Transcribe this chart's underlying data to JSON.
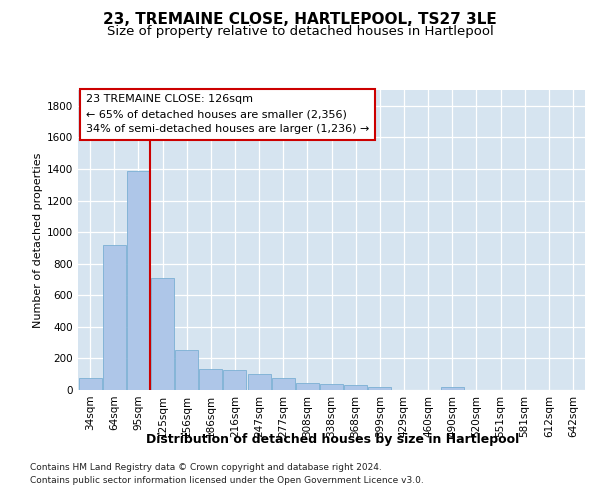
{
  "title": "23, TREMAINE CLOSE, HARTLEPOOL, TS27 3LE",
  "subtitle": "Size of property relative to detached houses in Hartlepool",
  "xlabel": "Distribution of detached houses by size in Hartlepool",
  "ylabel": "Number of detached properties",
  "categories": [
    "34sqm",
    "64sqm",
    "95sqm",
    "125sqm",
    "156sqm",
    "186sqm",
    "216sqm",
    "247sqm",
    "277sqm",
    "308sqm",
    "338sqm",
    "368sqm",
    "399sqm",
    "429sqm",
    "460sqm",
    "490sqm",
    "520sqm",
    "551sqm",
    "581sqm",
    "612sqm",
    "642sqm"
  ],
  "values": [
    75,
    920,
    1390,
    710,
    255,
    130,
    125,
    100,
    75,
    45,
    35,
    30,
    20,
    0,
    0,
    20,
    0,
    0,
    0,
    0,
    0
  ],
  "bar_color": "#aec6e8",
  "bar_edge_color": "#7bafd4",
  "vline_color": "#cc0000",
  "annotation_line1": "23 TREMAINE CLOSE: 126sqm",
  "annotation_line2": "← 65% of detached houses are smaller (2,356)",
  "annotation_line3": "34% of semi-detached houses are larger (1,236) →",
  "annotation_box_facecolor": "#ffffff",
  "annotation_box_edgecolor": "#cc0000",
  "ylim": [
    0,
    1900
  ],
  "yticks": [
    0,
    200,
    400,
    600,
    800,
    1000,
    1200,
    1400,
    1600,
    1800
  ],
  "plot_bg_color": "#d6e4f0",
  "footer_line1": "Contains HM Land Registry data © Crown copyright and database right 2024.",
  "footer_line2": "Contains public sector information licensed under the Open Government Licence v3.0.",
  "title_fontsize": 11,
  "subtitle_fontsize": 9.5,
  "xlabel_fontsize": 9,
  "ylabel_fontsize": 8,
  "tick_fontsize": 7.5,
  "annotation_fontsize": 8,
  "footer_fontsize": 6.5
}
